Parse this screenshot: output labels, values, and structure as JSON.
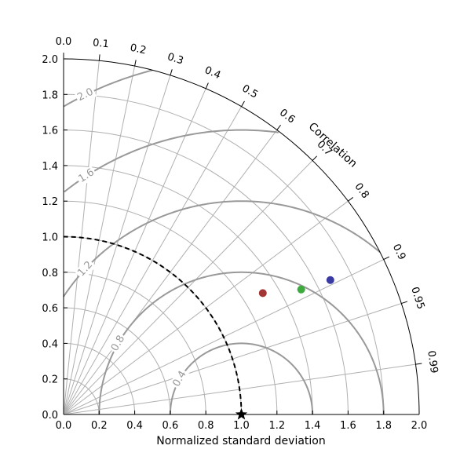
{
  "chart_data": {
    "type": "scatter",
    "subtype": "taylor-diagram",
    "title": "",
    "xlabel": "Normalized standard deviation",
    "angular_label": "Correlation",
    "std_range": [
      0.0,
      2.0
    ],
    "std_ticks": [
      "0.0",
      "0.2",
      "0.4",
      "0.6",
      "0.8",
      "1.0",
      "1.2",
      "1.4",
      "1.6",
      "1.8",
      "2.0"
    ],
    "correlation_ticks": [
      "0.0",
      "0.1",
      "0.2",
      "0.3",
      "0.4",
      "0.5",
      "0.6",
      "0.7",
      "0.8",
      "0.9",
      "0.95",
      "0.99"
    ],
    "std_grid_circles": [
      0.2,
      0.4,
      0.6,
      0.8,
      1.0,
      1.2,
      1.4,
      1.6,
      1.8,
      2.0
    ],
    "rms_contours": [
      {
        "value": 0.4,
        "label": "0.4"
      },
      {
        "value": 0.8,
        "label": "0.8"
      },
      {
        "value": 1.2,
        "label": "1.2"
      },
      {
        "value": 1.6,
        "label": "1.6"
      },
      {
        "value": 2.0,
        "label": "2.0"
      }
    ],
    "reference": {
      "std": 1.0,
      "correlation": 1.0,
      "marker": "star",
      "color": "#000000"
    },
    "points": [
      {
        "std": 1.312,
        "correlation": 0.854,
        "color": "#a23535"
      },
      {
        "std": 1.51,
        "correlation": 0.885,
        "color": "#3caa3c"
      },
      {
        "std": 1.68,
        "correlation": 0.893,
        "color": "#3a3aa3"
      }
    ],
    "grid": true
  }
}
